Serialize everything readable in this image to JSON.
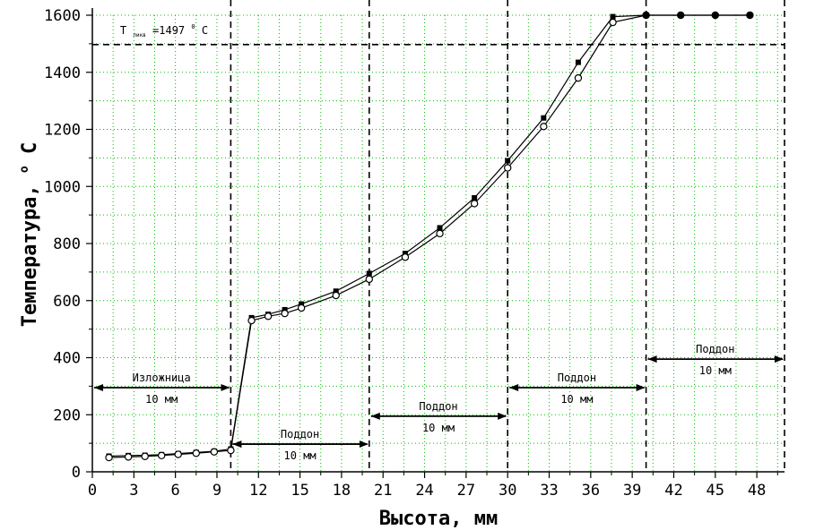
{
  "chart_data": {
    "type": "line",
    "xlabel": "Высота, мм",
    "ylabel": "Температура,",
    "ylabel_unit": "С",
    "ylabel_unit_sup": "o",
    "xlim": [
      0,
      50
    ],
    "ylim": [
      0,
      1600
    ],
    "xticks": [
      0,
      3,
      6,
      9,
      12,
      15,
      18,
      21,
      24,
      27,
      30,
      33,
      36,
      39,
      42,
      45,
      48
    ],
    "yticks": [
      0,
      200,
      400,
      600,
      800,
      1000,
      1200,
      1400,
      1600
    ],
    "grid": true,
    "grid_color": "#00bb00",
    "series": [
      {
        "marker": "filled-square",
        "x": [
          1.2,
          2.6,
          3.8,
          5.0,
          6.2,
          7.5,
          8.8,
          10.0,
          11.5,
          12.7,
          13.9,
          15.1,
          17.6,
          20.0,
          22.6,
          25.1,
          27.6,
          30.0,
          32.6,
          35.1,
          37.6,
          40.0,
          42.5,
          45.0,
          47.5
        ],
        "y": [
          55,
          57,
          58,
          60,
          64,
          68,
          72,
          80,
          540,
          552,
          568,
          588,
          633,
          695,
          765,
          855,
          960,
          1090,
          1240,
          1435,
          1595,
          1600,
          1600,
          1600,
          1600
        ]
      },
      {
        "marker": "open-circle",
        "x": [
          1.2,
          2.6,
          3.8,
          5.0,
          6.2,
          7.5,
          8.8,
          10.0,
          11.5,
          12.7,
          13.9,
          15.1,
          17.6,
          20.0,
          22.6,
          25.1,
          27.6,
          30.0,
          32.6,
          35.1,
          37.6,
          40.0,
          42.5,
          45.0,
          47.5
        ],
        "y": [
          50,
          52,
          54,
          57,
          61,
          65,
          70,
          75,
          530,
          545,
          555,
          574,
          618,
          675,
          752,
          835,
          940,
          1065,
          1210,
          1380,
          1575,
          1600,
          1600,
          1600,
          1600
        ]
      }
    ],
    "threshold": {
      "y": 1497,
      "label_t": "T",
      "label_sub": "ликв",
      "label_value": "=1497",
      "label_deg": "0",
      "label_unit": "C"
    },
    "zone_boundaries": [
      10,
      20,
      30,
      40,
      50
    ],
    "zones": [
      {
        "x_from": 0,
        "x_to": 10,
        "y": 295,
        "title": "Изложница",
        "size": "10 мм"
      },
      {
        "x_from": 10,
        "x_to": 20,
        "y": 97,
        "title": "Поддон",
        "size": "10 мм"
      },
      {
        "x_from": 20,
        "x_to": 30,
        "y": 195,
        "title": "Поддон",
        "size": "10 мм"
      },
      {
        "x_from": 30,
        "x_to": 40,
        "y": 295,
        "title": "Поддон",
        "size": "10 мм"
      },
      {
        "x_from": 40,
        "x_to": 50,
        "y": 395,
        "title": "Поддон",
        "size": "10 мм"
      }
    ]
  }
}
